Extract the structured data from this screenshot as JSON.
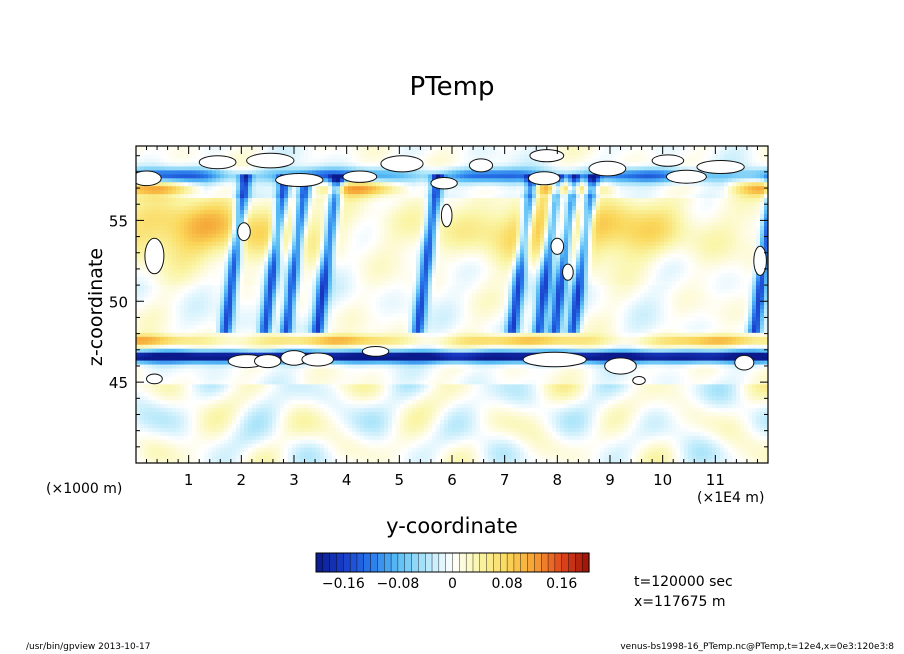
{
  "figure": {
    "title": "PTemp",
    "info_time": "t=120000 sec",
    "info_x": "x=117675 m",
    "footer_left": "/usr/bin/gpview  2013-10-17",
    "footer_right": "venus-bs1998-16_PTemp.nc@PTemp,t=12e4,x=0e3:120e3:8"
  },
  "chart_data": {
    "type": "heatmap",
    "title": "PTemp",
    "xlabel": "y-coordinate",
    "ylabel": "z-coordinate",
    "x_unit_label": "(×1E4 m)",
    "y_unit_label": "(×1000 m)",
    "xlim": [
      0,
      12
    ],
    "ylim": [
      40,
      59.6
    ],
    "x_ticks": [
      1,
      2,
      3,
      4,
      5,
      6,
      7,
      8,
      9,
      10,
      11
    ],
    "y_ticks": [
      45,
      50,
      55
    ],
    "x_tick_labels": [
      "1",
      "2",
      "3",
      "4",
      "5",
      "6",
      "7",
      "8",
      "9",
      "10",
      "11"
    ],
    "y_tick_labels": [
      "45",
      "50",
      "55"
    ],
    "colorbar": {
      "min": -0.2,
      "max": 0.2,
      "step": 0.01,
      "ticks": [
        -0.16,
        -0.08,
        0,
        0.08,
        0.16
      ],
      "tick_labels": [
        "−0.16",
        "−0.08",
        "0",
        "0.08",
        "0.16"
      ],
      "low_color": "#0a1a8c",
      "mid_color": "#ffffff",
      "high_color": "#9a1006"
    },
    "features": {
      "negative_band_z": 46.6,
      "positive_band_z": 47.2,
      "upper_warm_layer_z": [
        51,
        56
      ],
      "top_negative_layer_z": 57.8,
      "downdraft_columns_y": [
        1.85,
        2.6,
        3.0,
        3.6,
        5.5,
        7.3,
        7.8,
        8.1,
        8.45,
        11.9
      ]
    }
  }
}
